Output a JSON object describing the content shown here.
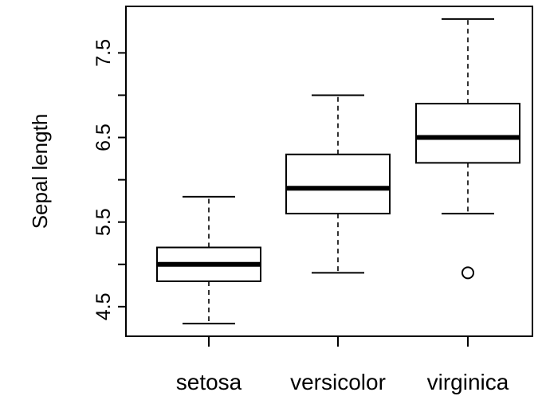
{
  "chart_data": {
    "type": "boxplot",
    "categories": [
      "setosa",
      "versicolor",
      "virginica"
    ],
    "ylabel": "Sepal length",
    "xlabel": "",
    "title": "",
    "ylim": [
      4.15,
      8.05
    ],
    "yticks": [
      4.5,
      5.0,
      5.5,
      6.0,
      6.5,
      7.0,
      7.5
    ],
    "ytick_labels": [
      "4.5",
      "",
      "5.5",
      "",
      "6.5",
      "",
      "7.5"
    ],
    "boxes": [
      {
        "name": "setosa",
        "whisker_low": 4.3,
        "q1": 4.8,
        "median": 5.0,
        "q3": 5.2,
        "whisker_high": 5.8,
        "outliers": []
      },
      {
        "name": "versicolor",
        "whisker_low": 4.9,
        "q1": 5.6,
        "median": 5.9,
        "q3": 6.3,
        "whisker_high": 7.0,
        "outliers": []
      },
      {
        "name": "virginica",
        "whisker_low": 5.6,
        "q1": 6.2,
        "median": 6.5,
        "q3": 6.9,
        "whisker_high": 7.9,
        "outliers": [
          4.9
        ]
      }
    ],
    "grid": false,
    "legend": "none"
  }
}
